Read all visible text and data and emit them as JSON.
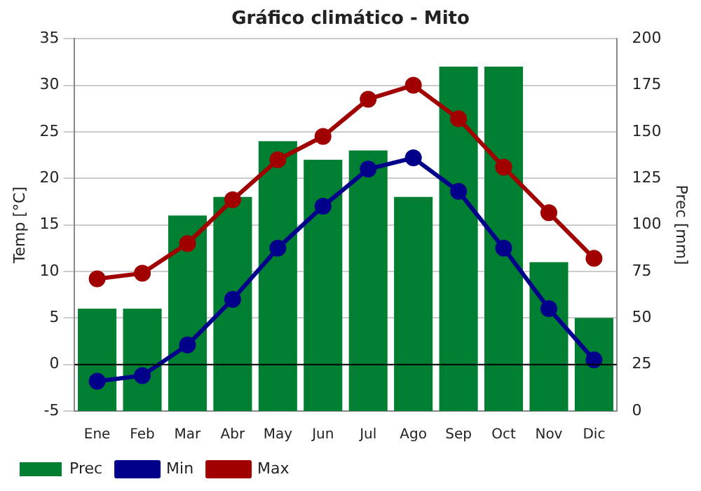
{
  "chart_data": {
    "type": "line",
    "title": "Gráfico climático - Mito",
    "ylabel": "Temp [°C]",
    "y2label": "Prec [mm]",
    "categories": [
      "Ene",
      "Feb",
      "Mar",
      "Abr",
      "May",
      "Jun",
      "Jul",
      "Ago",
      "Sep",
      "Oct",
      "Nov",
      "Dic"
    ],
    "series": [
      {
        "name": "Prec",
        "type": "bar",
        "axis": "y2",
        "color": "#007f33",
        "values": [
          55,
          55,
          105,
          115,
          145,
          135,
          140,
          115,
          185,
          185,
          80,
          50
        ]
      },
      {
        "name": "Min",
        "color": "#00008b",
        "values": [
          -1.8,
          -1.2,
          2.1,
          7,
          12.5,
          17,
          21,
          22.2,
          18.6,
          12.5,
          6,
          0.5
        ]
      },
      {
        "name": "Max",
        "color": "#a00000",
        "values": [
          9.2,
          9.8,
          13,
          17.7,
          22,
          24.5,
          28.5,
          30,
          26.4,
          21.2,
          16.3,
          11.4
        ]
      }
    ],
    "ylim": [
      -5,
      35
    ],
    "yticks": [
      -5,
      0,
      5,
      10,
      15,
      20,
      25,
      30,
      35
    ],
    "y2lim": [
      0,
      200
    ],
    "y2ticks": [
      0,
      25,
      50,
      75,
      100,
      125,
      150,
      175,
      200
    ],
    "ref_lines": [
      {
        "axis": "y",
        "value": 0,
        "color": "#000000"
      }
    ],
    "grid": "y",
    "legend": "bottom",
    "marker": "circle",
    "line_style": "solid"
  }
}
